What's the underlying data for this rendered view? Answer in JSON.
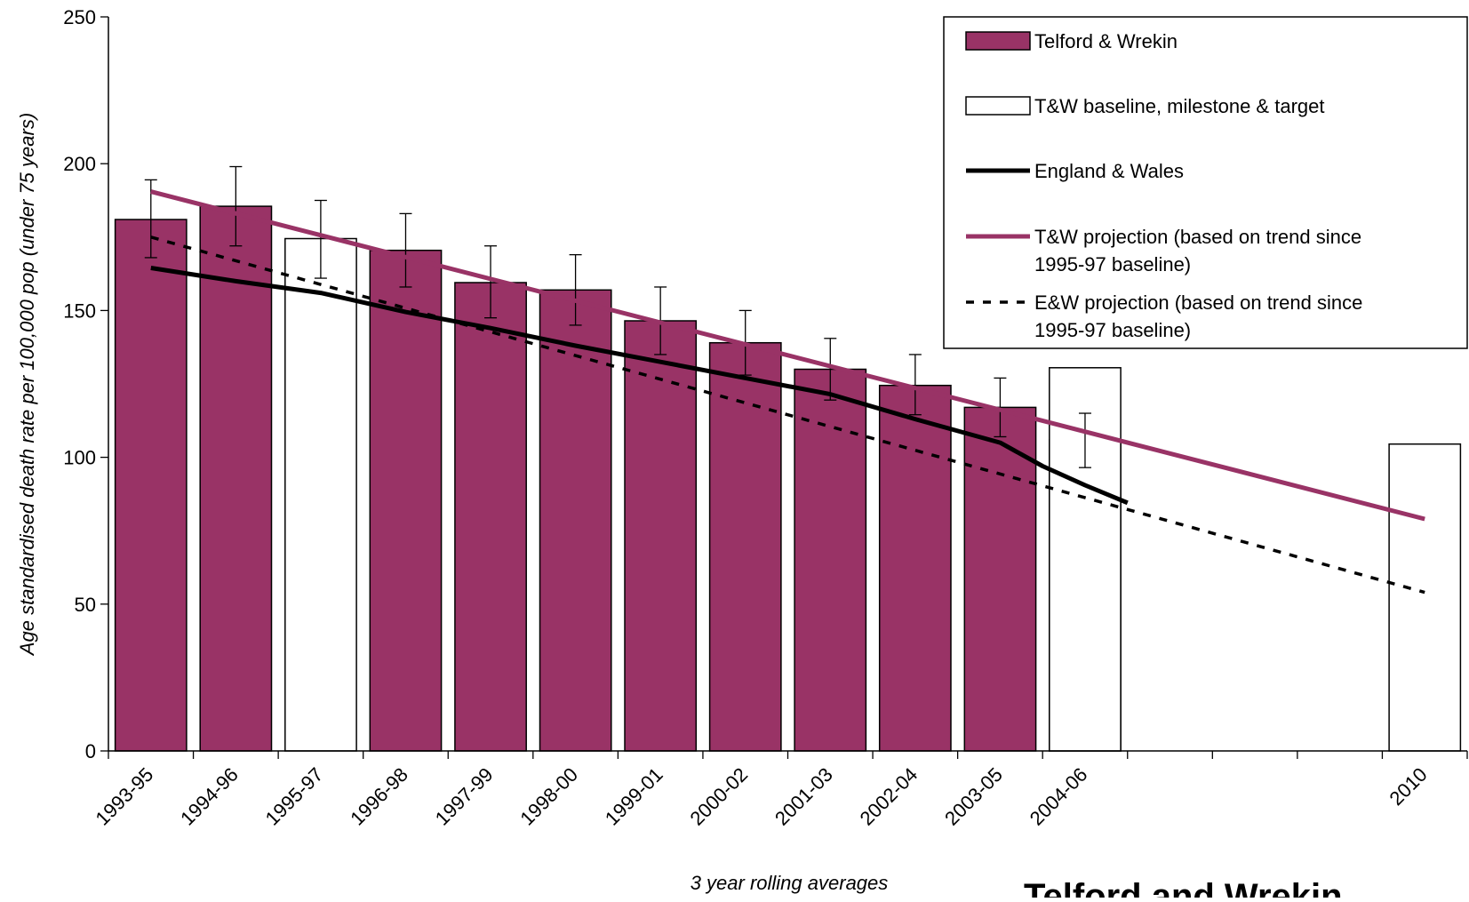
{
  "chart_data": {
    "type": "bar",
    "title": "",
    "xlabel": "3 year rolling averages",
    "ylabel": "Age standardised death rate per 100,000 pop (under 75 years)",
    "ylim": [
      0,
      250
    ],
    "yticks": [
      0,
      50,
      100,
      150,
      200,
      250
    ],
    "categories": [
      "1993-95",
      "1994-96",
      "1995-97",
      "1996-98",
      "1997-99",
      "1998-00",
      "1999-01",
      "2000-02",
      "2001-03",
      "2002-04",
      "2003-05",
      "2004-06",
      "",
      "",
      "",
      "2010"
    ],
    "series": [
      {
        "name": "Telford & Wrekin",
        "kind": "bar",
        "color": "#993366",
        "values": [
          181,
          185.5,
          null,
          170.5,
          159.5,
          157,
          146.5,
          139,
          130,
          124.5,
          117,
          106,
          null,
          null,
          null,
          null
        ],
        "error_low": [
          168,
          172,
          null,
          158,
          147.5,
          145,
          135,
          128,
          119.5,
          114.5,
          107,
          96.5,
          null,
          null,
          null,
          null
        ],
        "error_high": [
          194.5,
          199,
          null,
          183,
          172,
          169,
          158,
          150,
          140.5,
          135,
          127,
          115,
          null,
          null,
          null,
          null
        ]
      },
      {
        "name": "T&W baseline, milestone & target",
        "kind": "bar",
        "color": "#ffffff",
        "values": [
          null,
          null,
          174.5,
          null,
          null,
          null,
          null,
          null,
          null,
          null,
          null,
          130.5,
          null,
          null,
          null,
          104.5
        ],
        "error_low": [
          null,
          null,
          161,
          null,
          null,
          null,
          null,
          null,
          null,
          null,
          null,
          null,
          null,
          null,
          null,
          null
        ],
        "error_high": [
          null,
          null,
          187.5,
          null,
          null,
          null,
          null,
          null,
          null,
          null,
          null,
          null,
          null,
          null,
          null,
          null
        ]
      },
      {
        "name": "England & Wales",
        "kind": "line",
        "color": "#000000",
        "values": [
          164.5,
          160,
          156,
          149.5,
          144,
          138,
          132.5,
          127,
          121.5,
          113,
          105,
          97,
          90.5,
          84.5,
          null,
          null
        ],
        "positions": [
          0,
          1,
          2,
          3,
          4,
          5,
          6,
          7,
          8,
          9,
          10,
          10.5,
          11,
          11.5,
          null,
          null
        ]
      },
      {
        "name": "T&W projection (based on trend since 1995-97 baseline)",
        "kind": "line",
        "color": "#993366",
        "x": [
          0,
          15
        ],
        "values": [
          190.5,
          79
        ]
      },
      {
        "name": "E&W projection (based on trend since 1995-97 baseline)",
        "kind": "line",
        "color": "#000000",
        "dashed": true,
        "x": [
          0,
          15
        ],
        "values": [
          175,
          54
        ]
      }
    ],
    "legend_position": "top-right",
    "grid": false
  },
  "brand_text": "Telford and Wrekin"
}
